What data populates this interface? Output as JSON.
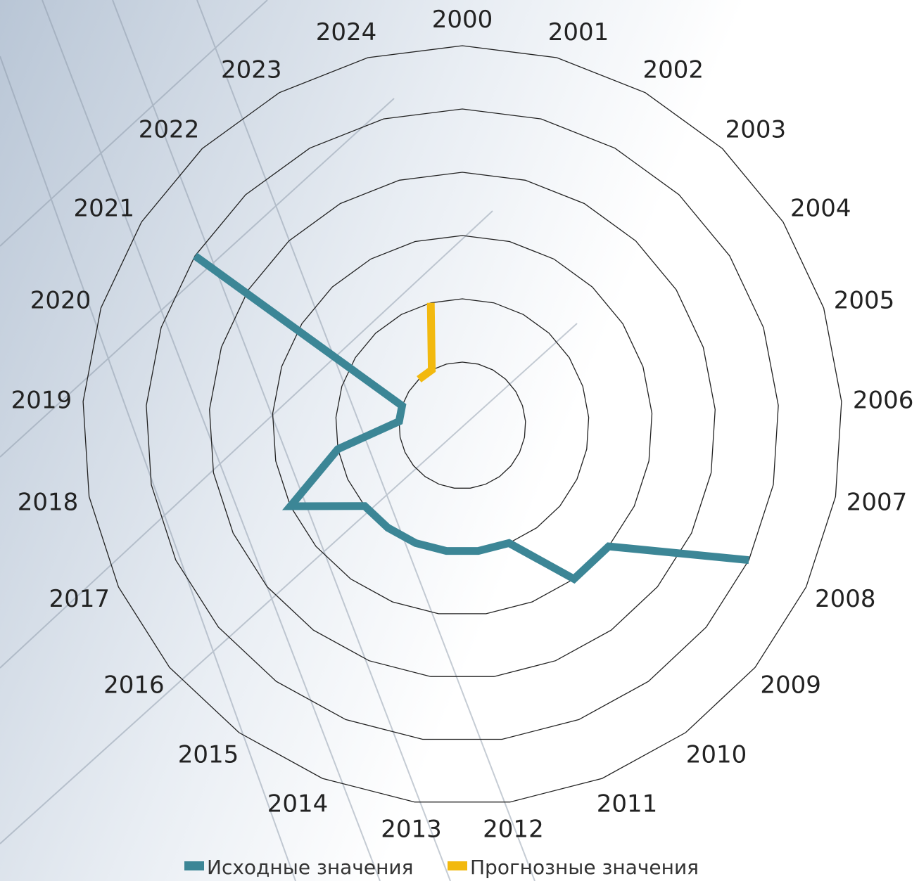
{
  "chart_data": {
    "type": "radar",
    "categories": [
      "2000",
      "2001",
      "2002",
      "2003",
      "2004",
      "2005",
      "2006",
      "2007",
      "2008",
      "2009",
      "2010",
      "2011",
      "2012",
      "2013",
      "2014",
      "2015",
      "2016",
      "2017",
      "2018",
      "2019",
      "2020",
      "2021",
      "2022",
      "2023",
      "2024"
    ],
    "series": [
      {
        "name": "Исходные значения",
        "color": "#3c8696",
        "values": [
          null,
          null,
          null,
          null,
          null,
          null,
          null,
          null,
          5,
          3,
          3,
          2,
          2,
          2,
          2,
          2,
          2,
          3,
          2,
          1,
          1,
          5,
          null,
          null,
          null
        ]
      },
      {
        "name": "Прогнозные значения",
        "color": "#f2b90f",
        "values": [
          null,
          null,
          null,
          null,
          null,
          null,
          null,
          null,
          null,
          null,
          null,
          null,
          null,
          null,
          null,
          null,
          null,
          null,
          null,
          null,
          null,
          null,
          1,
          1,
          2
        ]
      }
    ],
    "ylim": [
      0,
      6
    ],
    "yticks": [
      1,
      2,
      3,
      4,
      5,
      6
    ],
    "grid": true
  }
}
